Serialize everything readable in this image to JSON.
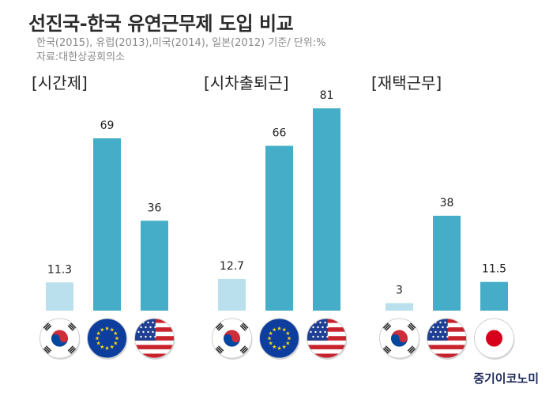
{
  "header": {
    "title": "선진국-한국 유연근무제 도입 비교",
    "subtitle_line1": "한국(2015), 유럽(2013),미국(2014), 일본(2012) 기준/ 단위:%",
    "subtitle_line2": "자료:대한상공회의소"
  },
  "brand": {
    "label": "중기이코노미"
  },
  "colors": {
    "korea_bar": "#b9e0ec",
    "other_bar": "#45adc7",
    "text": "#222222"
  },
  "chart_data": [
    {
      "type": "bar",
      "title": "[시간제]",
      "categories": [
        "한국",
        "유럽",
        "미국"
      ],
      "flags": [
        "korea-flag-icon",
        "eu-flag-icon",
        "us-flag-icon"
      ],
      "values": [
        11.3,
        69,
        36
      ],
      "labels": [
        "11.3",
        "69",
        "36"
      ]
    },
    {
      "type": "bar",
      "title": "[시차출퇴근]",
      "categories": [
        "한국",
        "유럽",
        "미국"
      ],
      "flags": [
        "korea-flag-icon",
        "eu-flag-icon",
        "us-flag-icon"
      ],
      "values": [
        12.7,
        66,
        81
      ],
      "labels": [
        "12.7",
        "66",
        "81"
      ]
    },
    {
      "type": "bar",
      "title": "[재택근무]",
      "categories": [
        "한국",
        "미국",
        "일본"
      ],
      "flags": [
        "korea-flag-icon",
        "us-flag-icon",
        "japan-flag-icon"
      ],
      "values": [
        3,
        38,
        11.5
      ],
      "labels": [
        "3",
        "38",
        "11.5"
      ]
    }
  ]
}
